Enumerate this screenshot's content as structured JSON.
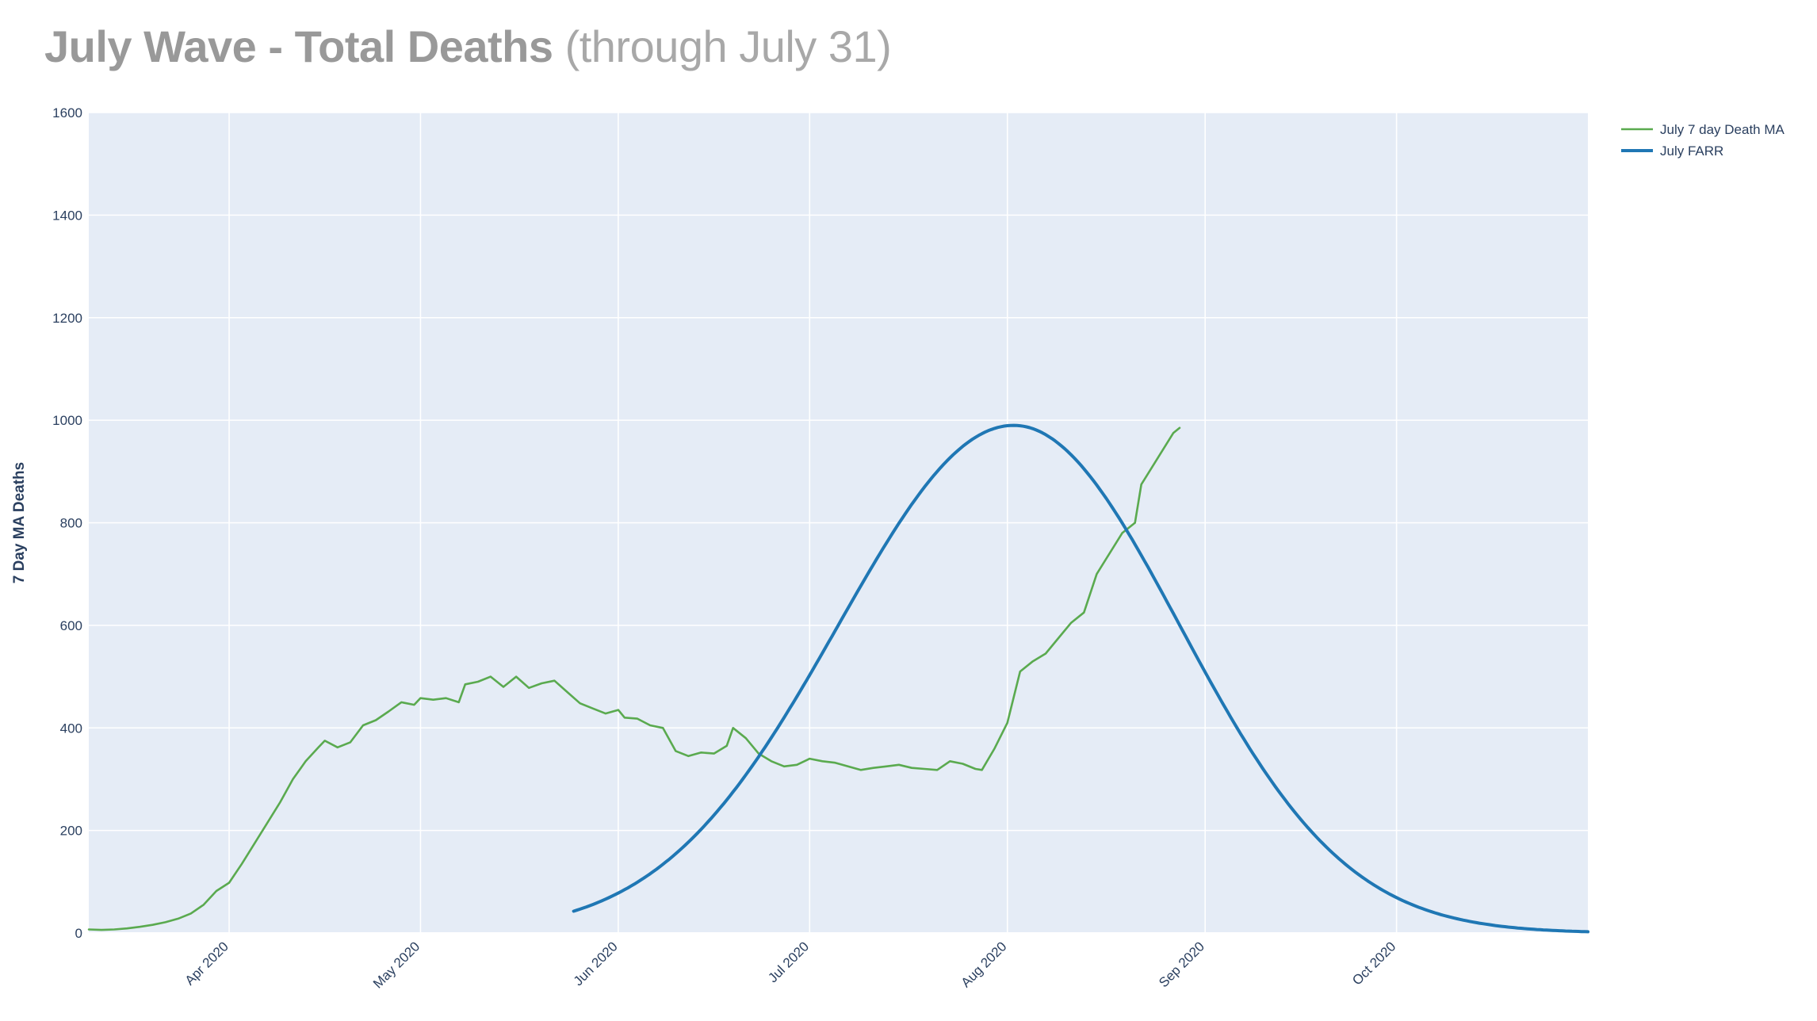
{
  "title": {
    "bold": "July Wave - Total Deaths",
    "light": "(through July 31)"
  },
  "chart_data": {
    "type": "line",
    "title": "July Wave - Total Deaths (through July 31)",
    "xlabel": "",
    "ylabel": "7 Day MA Deaths",
    "x_range": [
      "2020-03-10",
      "2020-10-31"
    ],
    "ylim": [
      0,
      1600
    ],
    "y_ticks": [
      0,
      200,
      400,
      600,
      800,
      1000,
      1200,
      1400,
      1600
    ],
    "x_ticks": [
      {
        "date": "2020-04-01",
        "label": "Apr 2020"
      },
      {
        "date": "2020-05-01",
        "label": "May 2020"
      },
      {
        "date": "2020-06-01",
        "label": "Jun 2020"
      },
      {
        "date": "2020-07-01",
        "label": "Jul 2020"
      },
      {
        "date": "2020-08-01",
        "label": "Aug 2020"
      },
      {
        "date": "2020-09-01",
        "label": "Sep 2020"
      },
      {
        "date": "2020-10-01",
        "label": "Oct 2020"
      }
    ],
    "grid": true,
    "legend_position": "top-right",
    "background_color": "#e5ecf6",
    "series": [
      {
        "name": "July 7 day Death MA",
        "color": "#5aaa4f",
        "points": [
          [
            "2020-03-10",
            7
          ],
          [
            "2020-03-12",
            6
          ],
          [
            "2020-03-14",
            7
          ],
          [
            "2020-03-16",
            9
          ],
          [
            "2020-03-18",
            12
          ],
          [
            "2020-03-20",
            16
          ],
          [
            "2020-03-22",
            21
          ],
          [
            "2020-03-24",
            28
          ],
          [
            "2020-03-26",
            38
          ],
          [
            "2020-03-28",
            55
          ],
          [
            "2020-03-30",
            82
          ],
          [
            "2020-04-01",
            98
          ],
          [
            "2020-04-03",
            135
          ],
          [
            "2020-04-05",
            175
          ],
          [
            "2020-04-07",
            215
          ],
          [
            "2020-04-09",
            255
          ],
          [
            "2020-04-11",
            300
          ],
          [
            "2020-04-13",
            335
          ],
          [
            "2020-04-15",
            362
          ],
          [
            "2020-04-16",
            375
          ],
          [
            "2020-04-18",
            362
          ],
          [
            "2020-04-20",
            372
          ],
          [
            "2020-04-22",
            405
          ],
          [
            "2020-04-24",
            415
          ],
          [
            "2020-04-26",
            432
          ],
          [
            "2020-04-28",
            450
          ],
          [
            "2020-04-30",
            445
          ],
          [
            "2020-05-01",
            458
          ],
          [
            "2020-05-03",
            455
          ],
          [
            "2020-05-05",
            458
          ],
          [
            "2020-05-07",
            450
          ],
          [
            "2020-05-08",
            485
          ],
          [
            "2020-05-10",
            490
          ],
          [
            "2020-05-12",
            500
          ],
          [
            "2020-05-14",
            480
          ],
          [
            "2020-05-16",
            500
          ],
          [
            "2020-05-18",
            478
          ],
          [
            "2020-05-20",
            487
          ],
          [
            "2020-05-22",
            492
          ],
          [
            "2020-05-24",
            470
          ],
          [
            "2020-05-26",
            448
          ],
          [
            "2020-05-28",
            438
          ],
          [
            "2020-05-30",
            428
          ],
          [
            "2020-06-01",
            435
          ],
          [
            "2020-06-02",
            420
          ],
          [
            "2020-06-04",
            418
          ],
          [
            "2020-06-06",
            405
          ],
          [
            "2020-06-08",
            400
          ],
          [
            "2020-06-10",
            355
          ],
          [
            "2020-06-12",
            345
          ],
          [
            "2020-06-14",
            352
          ],
          [
            "2020-06-16",
            350
          ],
          [
            "2020-06-18",
            365
          ],
          [
            "2020-06-19",
            400
          ],
          [
            "2020-06-21",
            380
          ],
          [
            "2020-06-23",
            350
          ],
          [
            "2020-06-25",
            335
          ],
          [
            "2020-06-27",
            325
          ],
          [
            "2020-06-29",
            328
          ],
          [
            "2020-07-01",
            340
          ],
          [
            "2020-07-03",
            335
          ],
          [
            "2020-07-05",
            332
          ],
          [
            "2020-07-07",
            325
          ],
          [
            "2020-07-09",
            318
          ],
          [
            "2020-07-11",
            322
          ],
          [
            "2020-07-13",
            325
          ],
          [
            "2020-07-15",
            328
          ],
          [
            "2020-07-17",
            322
          ],
          [
            "2020-07-19",
            320
          ],
          [
            "2020-07-21",
            318
          ],
          [
            "2020-07-23",
            335
          ],
          [
            "2020-07-25",
            330
          ],
          [
            "2020-07-27",
            320
          ],
          [
            "2020-07-28",
            318
          ],
          [
            "2020-07-30",
            360
          ],
          [
            "2020-08-01",
            410
          ],
          [
            "2020-08-03",
            510
          ],
          [
            "2020-08-05",
            530
          ],
          [
            "2020-08-07",
            545
          ],
          [
            "2020-08-09",
            575
          ],
          [
            "2020-08-11",
            605
          ],
          [
            "2020-08-13",
            625
          ],
          [
            "2020-08-15",
            700
          ],
          [
            "2020-08-17",
            740
          ],
          [
            "2020-08-19",
            780
          ],
          [
            "2020-08-21",
            800
          ],
          [
            "2020-08-22",
            875
          ],
          [
            "2020-08-23",
            895
          ],
          [
            "2020-08-25",
            935
          ],
          [
            "2020-08-27",
            975
          ],
          [
            "2020-08-28",
            985
          ]
        ]
      },
      {
        "name": "July FARR",
        "color": "#1f77b4",
        "model": "gaussian",
        "peak_date": "2020-08-02",
        "peak_value": 990,
        "start_date": "2020-05-25",
        "end_date": "2020-10-31",
        "sigma_days_left": 27.5,
        "sigma_days_right": 26
      }
    ]
  }
}
